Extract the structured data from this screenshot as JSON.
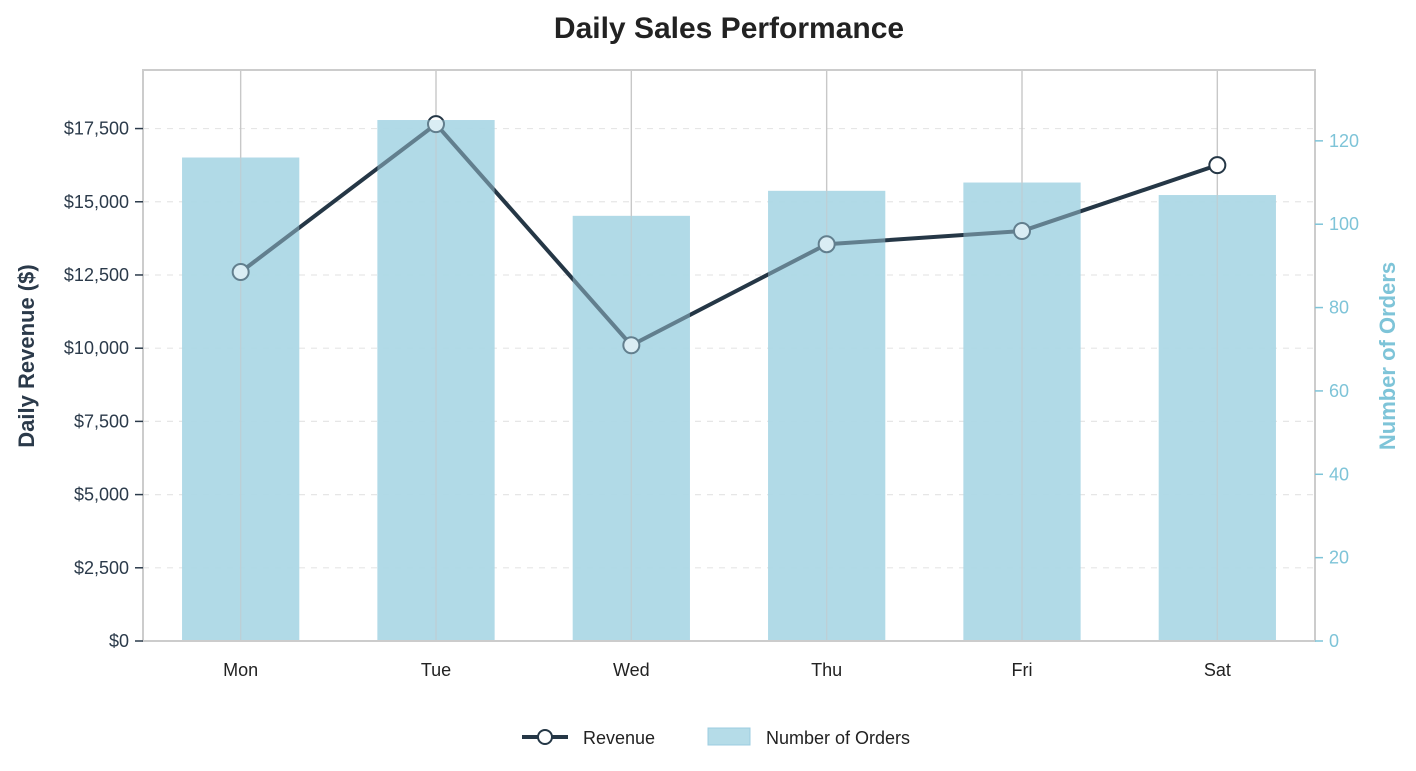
{
  "chart_data": {
    "type": "bar",
    "title": "Daily Sales Performance",
    "categories": [
      "Mon",
      "Tue",
      "Wed",
      "Thu",
      "Fri",
      "Sat"
    ],
    "series": [
      {
        "name": "Revenue",
        "type": "line",
        "axis": "left",
        "values": [
          12600,
          17650,
          10100,
          13550,
          14000,
          16250
        ],
        "color": "#253746"
      },
      {
        "name": "Number of Orders",
        "type": "bar",
        "axis": "right",
        "values": [
          116,
          125,
          102,
          108,
          110,
          107
        ],
        "color": "#add8e6"
      }
    ],
    "ylabel": "Daily Revenue ($)",
    "ylabel_right": "Number of Orders",
    "ylim": [
      0,
      19500
    ],
    "ylim_right": [
      0,
      137
    ],
    "yticks": [
      0,
      2500,
      5000,
      7500,
      10000,
      12500,
      15000,
      17500
    ],
    "yticks_right": [
      0,
      20,
      40,
      60,
      80,
      100,
      120
    ],
    "ytick_labels": [
      "$0",
      "$2,500",
      "$5,000",
      "$7,500",
      "$10,000",
      "$12,500",
      "$15,000",
      "$17,500"
    ],
    "ytick_labels_right": [
      "0",
      "20",
      "40",
      "60",
      "80",
      "100",
      "120"
    ],
    "grid": true,
    "legend_position": "bottom-center",
    "colors": {
      "revenue_line": "#253746",
      "orders_bar": "#add8e6",
      "right_axis": "#7ec4d8",
      "left_axis": "#2b3a4a"
    }
  }
}
